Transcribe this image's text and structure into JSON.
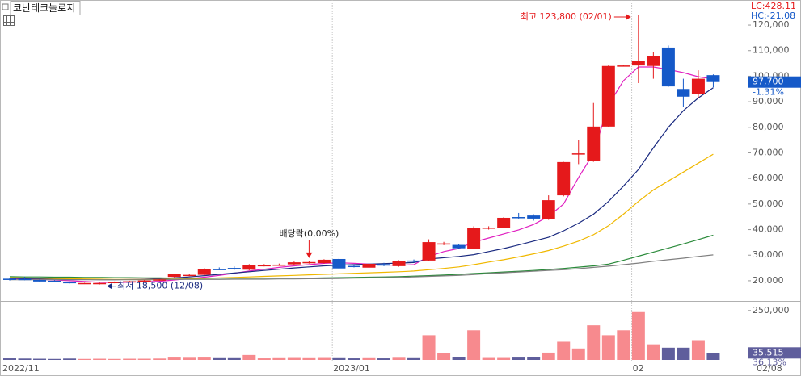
{
  "chart_data": {
    "type": "candlestick",
    "title": "코난테크놀로지",
    "categories": [
      "2022/11",
      null,
      null,
      null,
      null,
      null,
      null,
      null,
      null,
      null,
      null,
      null,
      null,
      null,
      null,
      null,
      null,
      null,
      null,
      null,
      null,
      null,
      "2023/01",
      null,
      null,
      null,
      null,
      null,
      null,
      null,
      null,
      null,
      null,
      null,
      null,
      null,
      null,
      null,
      null,
      null,
      null,
      null,
      "02",
      null,
      null,
      null,
      null,
      null
    ],
    "last_date": "02/08",
    "open": [
      20800,
      20700,
      20300,
      20000,
      19500,
      18900,
      18800,
      19200,
      19500,
      19900,
      20200,
      21500,
      22100,
      22300,
      24600,
      25000,
      24300,
      25700,
      26000,
      26400,
      27000,
      26900,
      28500,
      25800,
      25100,
      26500,
      25700,
      27900,
      27900,
      34200,
      34000,
      32600,
      40600,
      40800,
      44900,
      45500,
      44000,
      53400,
      69500,
      67000,
      80300,
      104000,
      104200,
      104000,
      111200,
      95000,
      92900,
      100400
    ],
    "high": [
      21000,
      21500,
      20500,
      20200,
      19700,
      19200,
      19300,
      19700,
      20000,
      20300,
      20600,
      22800,
      22600,
      25000,
      25200,
      25600,
      26500,
      26500,
      26700,
      27500,
      27600,
      28400,
      28900,
      26200,
      26900,
      27000,
      28000,
      28300,
      36200,
      35200,
      34400,
      41300,
      41300,
      44900,
      46500,
      46000,
      53400,
      66500,
      75000,
      89500,
      104200,
      104300,
      123800,
      109600,
      112000,
      99000,
      102300,
      100700
    ],
    "low": [
      20100,
      20200,
      19600,
      19500,
      18900,
      18700,
      18500,
      19000,
      19300,
      19700,
      20000,
      21300,
      21800,
      22000,
      24100,
      24200,
      24100,
      25600,
      25800,
      26200,
      26700,
      26700,
      24500,
      25200,
      24900,
      25700,
      25500,
      27200,
      27700,
      33900,
      32400,
      32400,
      40000,
      40500,
      44300,
      43500,
      43800,
      53000,
      65600,
      66500,
      80000,
      103900,
      97300,
      99000,
      95800,
      88000,
      91600,
      95600
    ],
    "close": [
      20300,
      20400,
      19700,
      19600,
      19000,
      19100,
      19100,
      19500,
      19800,
      20100,
      20500,
      22700,
      22300,
      24700,
      24300,
      24600,
      26200,
      26100,
      26300,
      27200,
      27300,
      28200,
      24800,
      25500,
      26600,
      25900,
      27800,
      27600,
      35100,
      34600,
      32700,
      40500,
      40800,
      44600,
      44600,
      44300,
      51500,
      66400,
      69800,
      80300,
      104000,
      104200,
      106100,
      108000,
      96000,
      92000,
      99000,
      97700
    ],
    "volume": [
      8000,
      7000,
      6000,
      5000,
      7000,
      5000,
      6000,
      5000,
      6000,
      6000,
      7000,
      12000,
      11000,
      12000,
      9000,
      9000,
      25000,
      8000,
      9000,
      10000,
      9000,
      10000,
      9000,
      8000,
      9000,
      8000,
      11000,
      9000,
      125000,
      35000,
      15000,
      150000,
      10000,
      10000,
      12000,
      14000,
      37000,
      92000,
      58000,
      175000,
      125000,
      150000,
      242000,
      79000,
      62000,
      62000,
      96000,
      35515
    ],
    "up_color": "#e5191b",
    "down_color": "#1559c8",
    "volume_up_color": "#f78a8e",
    "volume_down_color": "#5f5e9c",
    "moving_averages": [
      {
        "color": "#e020c0",
        "values": [
          20800,
          20700,
          20500,
          20300,
          20000,
          19700,
          19400,
          19300,
          19400,
          19600,
          19800,
          20300,
          20800,
          21400,
          22100,
          22900,
          23800,
          24500,
          25200,
          25800,
          26300,
          26800,
          27000,
          26800,
          26500,
          26200,
          26000,
          26300,
          29500,
          31400,
          32600,
          35100,
          36700,
          38300,
          39900,
          42000,
          45200,
          50000,
          60400,
          69800,
          88800,
          98200,
          103600,
          103600,
          102600,
          101400,
          99800,
          98900
        ]
      },
      {
        "color": "#1a2a80",
        "values": [
          21000,
          20900,
          20800,
          20700,
          20600,
          20500,
          20400,
          20400,
          20500,
          20600,
          20800,
          21100,
          21500,
          22000,
          22500,
          23000,
          23500,
          24000,
          24500,
          25000,
          25400,
          25800,
          26100,
          26300,
          26500,
          26700,
          26900,
          27100,
          28500,
          29000,
          29500,
          30200,
          31400,
          32600,
          34000,
          35500,
          37000,
          39500,
          42500,
          46000,
          51000,
          57000,
          63500,
          72000,
          80000,
          86500,
          91500,
          95500
        ]
      },
      {
        "color": "#f0b800",
        "values": [
          21200,
          21100,
          21000,
          20900,
          20800,
          20700,
          20600,
          20500,
          20500,
          20500,
          20500,
          20600,
          20700,
          20900,
          21100,
          21300,
          21500,
          21700,
          21900,
          22100,
          22300,
          22500,
          22700,
          22900,
          23100,
          23300,
          23500,
          23800,
          24300,
          24800,
          25400,
          26300,
          27300,
          28200,
          29300,
          30500,
          31800,
          33500,
          35500,
          38000,
          41500,
          46000,
          51000,
          55500,
          59000,
          62500,
          66000,
          69500
        ]
      },
      {
        "color": "#2a8a3a",
        "values": [
          21600,
          21500,
          21500,
          21400,
          21400,
          21300,
          21300,
          21200,
          21200,
          21100,
          21100,
          21000,
          21000,
          21000,
          21000,
          21000,
          21000,
          21000,
          21000,
          21000,
          21000,
          21100,
          21200,
          21300,
          21400,
          21500,
          21600,
          21800,
          22000,
          22200,
          22500,
          22800,
          23100,
          23400,
          23700,
          24000,
          24400,
          24800,
          25300,
          25800,
          26500,
          28000,
          29600,
          31200,
          32800,
          34400,
          36100,
          37800
        ]
      },
      {
        "color": "#808080",
        "values": [
          20400,
          20400,
          20400,
          20400,
          20400,
          20400,
          20400,
          20400,
          20400,
          20400,
          20400,
          20500,
          20500,
          20500,
          20500,
          20600,
          20600,
          20600,
          20700,
          20700,
          20800,
          20800,
          20900,
          21000,
          21100,
          21200,
          21300,
          21500,
          21700,
          21900,
          22100,
          22400,
          22800,
          23100,
          23400,
          23700,
          24000,
          24300,
          24700,
          25200,
          25700,
          26300,
          26900,
          27600,
          28200,
          28800,
          29500,
          30100
        ]
      }
    ],
    "ylim": [
      12400,
      129800
    ],
    "yticks": [
      {
        "value": 20000,
        "label": "20,000"
      },
      {
        "value": 30000,
        "label": "30,000"
      },
      {
        "value": 40000,
        "label": "40,000"
      },
      {
        "value": 50000,
        "label": "50,000"
      },
      {
        "value": 60000,
        "label": "60,000"
      },
      {
        "value": 70000,
        "label": "70,000"
      },
      {
        "value": 80000,
        "label": "80,000"
      },
      {
        "value": 90000,
        "label": "90,000"
      },
      {
        "value": 100000,
        "label": "100,000"
      },
      {
        "value": 110000,
        "label": "110,000"
      },
      {
        "value": 120000,
        "label": "120,000"
      }
    ],
    "volume_ylim": [
      0,
      290000
    ],
    "volume_yticks": [
      {
        "value": 250000,
        "label": "250,000"
      }
    ],
    "high_label": "최고 123,800 (02/01)",
    "low_label": "최저 18,500 (12/08)",
    "dividend_label": "배당락(0,00%)",
    "last_price": {
      "value": 97700,
      "label": "97,700"
    },
    "change_label": "-1.31%",
    "last_volume": {
      "value": 35515,
      "label": "35,515"
    },
    "volume_ratio_label": "36.13%",
    "lc_label": "LC:428.11",
    "hc_label": "HC:-21.08"
  }
}
